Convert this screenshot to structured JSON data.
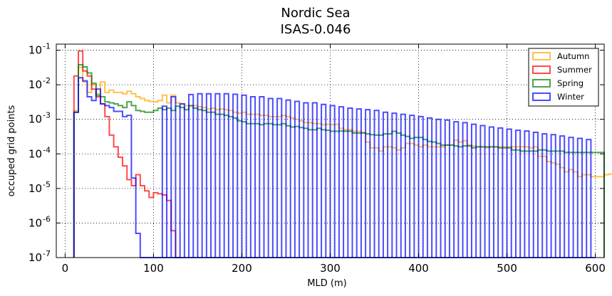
{
  "chart_data": {
    "type": "step-histogram",
    "title": "Nordic Sea",
    "subtitle": "ISAS-0.046",
    "xlabel": "MLD (m)",
    "ylabel": "occuped grid points",
    "xlim": [
      -10,
      610
    ],
    "ylim": [
      1e-07,
      0.15
    ],
    "yscale": "log",
    "x_ticks": [
      0,
      100,
      200,
      300,
      400,
      500,
      600
    ],
    "y_ticks": [
      {
        "value": 1e-07,
        "exp": "-7"
      },
      {
        "value": 1e-06,
        "exp": "-6"
      },
      {
        "value": 1e-05,
        "exp": "-5"
      },
      {
        "value": 0.0001,
        "exp": "-4"
      },
      {
        "value": 0.001,
        "exp": "-3"
      },
      {
        "value": 0.01,
        "exp": "-2"
      },
      {
        "value": 0.1,
        "exp": "-1"
      }
    ],
    "y_tick_base": "10",
    "grid": true,
    "legend_position": "top-right",
    "bin_edges_start": 10,
    "bin_width": 5,
    "series": [
      {
        "name": "Autumn",
        "color": "#ffa500",
        "values": [
          0.0018,
          0.032,
          0.012,
          0.006,
          0.01,
          0.0055,
          0.012,
          0.006,
          0.007,
          0.006,
          0.006,
          0.0055,
          0.0065,
          0.0055,
          0.0045,
          0.004,
          0.0035,
          0.0033,
          0.0032,
          0.0035,
          0.005,
          0.003,
          0.005,
          0.003,
          0.0028,
          0.0025,
          0.0024,
          0.0025,
          0.0023,
          0.0022,
          0.002,
          0.0021,
          0.0019,
          0.002,
          0.0019,
          0.0018,
          0.0016,
          0.0015,
          0.0016,
          0.0014,
          0.0014,
          0.0014,
          0.0013,
          0.0013,
          0.0012,
          0.0012,
          0.0012,
          0.0013,
          0.0012,
          0.0011,
          0.001,
          0.0009,
          0.0008,
          0.0008,
          0.00075,
          0.00075,
          0.0007,
          0.00072,
          0.0007,
          0.00072,
          0.00055,
          0.0005,
          0.0005,
          0.00045,
          0.00045,
          0.00042,
          0.00022,
          0.00015,
          0.00015,
          0.00012,
          0.00016,
          0.00016,
          0.00015,
          0.00013,
          0.00015,
          0.0002,
          0.0002,
          0.00018,
          0.00016,
          0.00018,
          0.00016,
          0.00016,
          0.00016,
          0.00016,
          0.00018,
          0.00018,
          0.00025,
          0.00022,
          0.00024,
          0.00018,
          0.00017,
          0.00016,
          0.00016,
          0.00015,
          0.00016,
          0.00016,
          0.00016,
          0.00016,
          0.00016,
          0.00016,
          0.00016,
          0.00016,
          0.00016,
          0.00015,
          0.00016,
          8.5e-05,
          8.5e-05,
          6e-05,
          5.5e-05,
          5e-05,
          4e-05,
          3e-05,
          3.5e-05,
          3e-05,
          2.2e-05,
          2.5e-05,
          2.5e-05,
          2.2e-05,
          2.2e-05,
          2.2e-05,
          2.5e-05,
          2.6e-05,
          2.5e-05,
          2.5e-05,
          2.8e-05,
          2.5e-05,
          2.2e-05,
          2.2e-05
        ]
      },
      {
        "name": "Summer",
        "color": "#ff0000",
        "values": [
          0.018,
          0.095,
          0.025,
          0.018,
          0.0075,
          0.0045,
          0.0028,
          0.0012,
          0.00035,
          0.00016,
          8e-05,
          4.5e-05,
          1.8e-05,
          1.2e-05,
          2.5e-05,
          1.2e-05,
          8.5e-06,
          5.5e-06,
          7.5e-06,
          7e-06,
          6.5e-06,
          4.5e-06,
          6e-07,
          1e-07
        ]
      },
      {
        "name": "Spring",
        "color": "#008000",
        "values": [
          0.0016,
          0.038,
          0.033,
          0.022,
          0.011,
          0.005,
          0.0045,
          0.0032,
          0.003,
          0.0028,
          0.0025,
          0.0022,
          0.0032,
          0.0025,
          0.0018,
          0.0017,
          0.0016,
          0.0016,
          0.0018,
          0.0021,
          0.0019,
          0.0021,
          0.0018,
          0.0024,
          0.0022,
          0.0019,
          0.0025,
          0.0021,
          0.0019,
          0.0018,
          0.0016,
          0.0016,
          0.0014,
          0.0014,
          0.0013,
          0.0012,
          0.0011,
          0.0009,
          0.00085,
          0.00075,
          0.00075,
          0.00075,
          0.0007,
          0.00075,
          0.00075,
          0.0007,
          0.0007,
          0.00075,
          0.00065,
          0.0006,
          0.00062,
          0.00058,
          0.00055,
          0.0005,
          0.0005,
          0.00055,
          0.0005,
          0.00048,
          0.00045,
          0.00045,
          0.00046,
          0.00045,
          0.00045,
          0.0004,
          0.0004,
          0.0004,
          0.00038,
          0.00036,
          0.00035,
          0.00035,
          0.00038,
          0.00038,
          0.00045,
          0.0004,
          0.00035,
          0.00032,
          0.00028,
          0.0003,
          0.0003,
          0.00026,
          0.00023,
          0.00022,
          0.0002,
          0.00018,
          0.00018,
          0.00018,
          0.00017,
          0.00016,
          0.00017,
          0.00017,
          0.00015,
          0.00016,
          0.00016,
          0.00016,
          0.00016,
          0.00016,
          0.00015,
          0.00015,
          0.00015,
          0.00013,
          0.00013,
          0.00012,
          0.00012,
          0.00012,
          0.00012,
          0.00013,
          0.00013,
          0.00012,
          0.00012,
          0.00012,
          0.00012,
          0.00011,
          0.00011,
          0.00011,
          0.00011,
          0.00011,
          0.00011,
          0.00011,
          0.00011,
          0.00011
        ]
      },
      {
        "name": "Winter",
        "color": "#0000ff",
        "values": [
          0.0016,
          0.016,
          0.013,
          0.0045,
          0.0035,
          0.0075,
          0.0028,
          0.0025,
          0.0022,
          0.0017,
          0.0017,
          0.0012,
          0.0013,
          2e-05,
          5e-07,
          1e-07,
          1e-07,
          1e-07,
          1e-07,
          1e-07,
          1e-07,
          1e-07,
          1e-07,
          1e-07,
          1e-07,
          1e-07,
          1e-07,
          1e-07,
          1e-07,
          1e-07,
          1e-07,
          1e-07,
          1e-07,
          1e-07,
          1e-07,
          1e-07,
          1e-07,
          1e-07,
          1e-07,
          1e-07,
          1e-07,
          1e-07,
          1e-07,
          1e-07,
          1e-07,
          1e-07,
          1e-07,
          1e-07,
          1e-07,
          1e-07,
          1e-07,
          1e-07,
          1e-07,
          1e-07,
          1e-07,
          1e-07,
          1e-07,
          1e-07,
          1e-07,
          1e-07,
          1e-07,
          1e-07,
          1e-07,
          1e-07,
          1e-07,
          1e-07,
          1e-07,
          1e-07,
          1e-07,
          1e-07,
          1e-07,
          1e-07,
          1e-07,
          1e-07,
          1e-07,
          1e-07,
          1e-07,
          1e-07,
          1e-07,
          1e-07,
          1e-07,
          1e-07,
          1e-07,
          1e-07,
          1e-07,
          1e-07,
          1e-07,
          1e-07,
          1e-07,
          1e-07,
          1e-07,
          1e-07,
          1e-07,
          1e-07,
          1e-07,
          1e-07,
          1e-07,
          1e-07,
          1e-07,
          1e-07,
          1e-07,
          1e-07,
          1e-07,
          1e-07,
          1e-07,
          1e-07,
          1e-07,
          1e-07,
          1e-07,
          1e-07,
          1e-07,
          1e-07,
          1e-07,
          1e-07,
          1e-07,
          1e-07,
          1e-07,
          1e-07
        ]
      }
    ],
    "winter_comb": {
      "start": 110,
      "end": 600,
      "width": 10,
      "tops": [
        0.0024,
        0.0045,
        0.0028,
        0.0052,
        0.0055,
        0.0055,
        0.0055,
        0.0055,
        0.0053,
        0.005,
        0.0045,
        0.0045,
        0.004,
        0.004,
        0.0036,
        0.0033,
        0.003,
        0.003,
        0.0027,
        0.0025,
        0.0023,
        0.0021,
        0.002,
        0.0019,
        0.0018,
        0.0016,
        0.0015,
        0.0014,
        0.0013,
        0.0012,
        0.0011,
        0.001,
        0.00095,
        0.00085,
        0.0008,
        0.00072,
        0.00066,
        0.0006,
        0.00056,
        0.00052,
        0.00048,
        0.00046,
        0.00042,
        0.00038,
        0.00036,
        0.00033,
        0.0003,
        0.00028,
        0.00026
      ]
    }
  }
}
